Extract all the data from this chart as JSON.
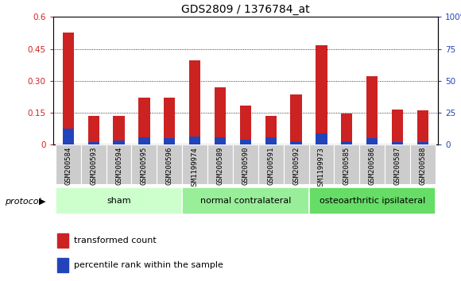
{
  "title": "GDS2809 / 1376784_at",
  "samples": [
    "GSM200584",
    "GSM200593",
    "GSM200594",
    "GSM200595",
    "GSM200596",
    "GSM1199974",
    "GSM200589",
    "GSM200590",
    "GSM200591",
    "GSM200592",
    "GSM1199973",
    "GSM200585",
    "GSM200586",
    "GSM200587",
    "GSM200588"
  ],
  "red_values": [
    0.525,
    0.135,
    0.135,
    0.22,
    0.22,
    0.395,
    0.27,
    0.185,
    0.135,
    0.235,
    0.465,
    0.145,
    0.32,
    0.165,
    0.16
  ],
  "blue_values": [
    0.075,
    0.012,
    0.018,
    0.035,
    0.03,
    0.04,
    0.035,
    0.022,
    0.035,
    0.016,
    0.055,
    0.016,
    0.03,
    0.012,
    0.012
  ],
  "groups": [
    {
      "label": "sham",
      "start": 0,
      "end": 5
    },
    {
      "label": "normal contralateral",
      "start": 5,
      "end": 10
    },
    {
      "label": "osteoarthritic ipsilateral",
      "start": 10,
      "end": 15
    }
  ],
  "group_colors": [
    "#ccffcc",
    "#99ee99",
    "#66dd66"
  ],
  "ylim_left": [
    0,
    0.6
  ],
  "ylim_right": [
    0,
    100
  ],
  "yticks_left": [
    0,
    0.15,
    0.3,
    0.45,
    0.6
  ],
  "yticks_right": [
    0,
    25,
    50,
    75,
    100
  ],
  "ytick_labels_left": [
    "0",
    "0.15",
    "0.30",
    "0.45",
    "0.6"
  ],
  "ytick_labels_right": [
    "0",
    "25",
    "50",
    "75",
    "100%"
  ],
  "red_color": "#cc2222",
  "blue_color": "#2244bb",
  "xtick_bg_color": "#cccccc",
  "title_fontsize": 10,
  "protocol_label": "protocol",
  "legend_red": "transformed count",
  "legend_blue": "percentile rank within the sample"
}
